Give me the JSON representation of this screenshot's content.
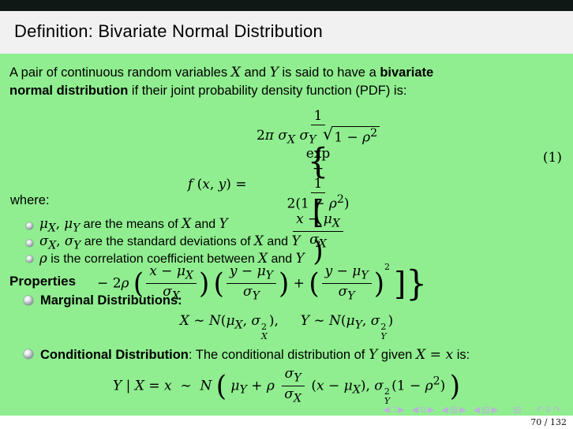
{
  "theme": {
    "body_bg": "#90ee90",
    "title_bg": "#f1f1f1",
    "top_bar": "#101815",
    "nav_color": "#b9b3d9",
    "text": "#000000",
    "footer_bg": "#ffffff"
  },
  "slide": {
    "title": "Definition: Bivariate Normal Distribution",
    "intro_html": "A pair of continuous random variables <span class='mi'><i>X</i></span> and <span class='mi'><i>Y</i></span> is said to have a <b>bivariate</b><br><b>normal distribution</b> if their joint probability density function (PDF) is:",
    "equation1": {
      "line1_html": "<i>f</i> (<i>x</i>, <i>y</i>) = <span class='fr'><span class='n'>1</span><span class='d'>2<i>π</i> <i>σ</i><sub><i>X</i></sub> <i>σ</i><sub><i>Y</i></sub> <span class='sq'><span class='rt'>√</span><span class='rad'>1 − <i>ρ</i><sup>2</sup></span></span></span> exp <span class='b3'>{</span> − <span class='fr'><span class='n'>1</span><span class='d'>2(1 − <i>ρ</i><sup>2</sup>)</span></span> <span class='b2'>[</span><span class='b1'>(</span><span class='fr'><span class='n'><i>x</i> − <i>μ</i><sub><i>X</i></sub></span><span class='d'><i>σ</i><sub><i>X</i></sub></span></span><span class='b1'>)</span><sup class='s2'>2</sup>",
      "line2_html": "− 2<i>ρ</i> <span class='b1'>(</span><span class='fr'><span class='n'><i>x</i> − <i>μ</i><sub><i>X</i></sub></span><span class='d'><i>σ</i><sub><i>X</i></sub></span></span><span class='b1'>)</span> <span class='b1'>(</span><span class='fr'><span class='n'><i>y</i> − <i>μ</i><sub><i>Y</i></sub></span><span class='d'><i>σ</i><sub><i>Y</i></sub></span></span><span class='b1'>)</span> + <span class='b1'>(</span><span class='fr'><span class='n'><i>y</i> − <i>μ</i><sub><i>Y</i></sub></span><span class='d'><i>σ</i><sub><i>Y</i></sub></span></span><span class='b1'>)</span><sup class='s2'>2</sup> <span class='b2'>]</span><span class='b3'>}</span>",
      "number": "(1)"
    },
    "where_label": "where:",
    "where_bullets": [
      "<span class='mi'><i>μ</i><sub><i>X</i></sub>, <i>μ</i><sub><i>Y</i></sub></span> are the means of <span class='mi'><i>X</i></span> and <span class='mi'><i>Y</i></span>",
      "<span class='mi'><i>σ</i><sub><i>X</i></sub>, <i>σ</i><sub><i>Y</i></sub></span> are the standard deviations of <span class='mi'><i>X</i></span> and <span class='mi'><i>Y</i></span>",
      "<span class='mi'><i>ρ</i></span> is the correlation coefficient between <span class='mi'><i>X</i></span> and <span class='mi'><i>Y</i></span>"
    ],
    "properties_label": "Properties",
    "marginal": {
      "label": "Marginal Distributions:",
      "formula_html": "<i>X</i> ∼ <i>N</i>(<i>μ</i><sub><i>X</i></sub>, <i>σ</i><span class='st'><span>2</span><span><i>X</i></span></span>), &#8195; <i>Y</i> ∼ <i>N</i>(<i>μ</i><sub><i>Y</i></sub>, <i>σ</i><span class='st'><span>2</span><span><i>Y</i></span></span>)"
    },
    "conditional": {
      "label": "Conditional Distribution",
      "rest_html": ": The conditional distribution of <span class='mi'><i>Y</i></span> given <span class='mi'><i>X</i> = <i>x</i></span> is:",
      "formula_html": "<i>Y</i> | <i>X</i> = <i>x</i> &nbsp;∼&nbsp; <i>N</i> <span class='b1'>(</span> <i>μ</i><sub><i>Y</i></sub> + <i>ρ</i> <span class='fr'><span class='n'><i>σ</i><sub><i>Y</i></sub></span><span class='d'><i>σ</i><sub><i>X</i></sub></span></span> (<i>x</i> − <i>μ</i><sub><i>X</i></sub>), <i>σ</i><span class='st'><span>2</span><span><i>Y</i></span></span>(1 − <i>ρ</i><sup>2</sup>) <span class='b1'>)</span>"
    },
    "nav_icons": [
      "◀",
      "□",
      "▶",
      "◀",
      "⧉",
      "▶",
      "◀",
      "▤",
      "▶",
      "◀",
      "▤",
      "▶",
      "▤",
      "↶",
      "⚲",
      "↷"
    ],
    "page_number": "70 / 132"
  }
}
